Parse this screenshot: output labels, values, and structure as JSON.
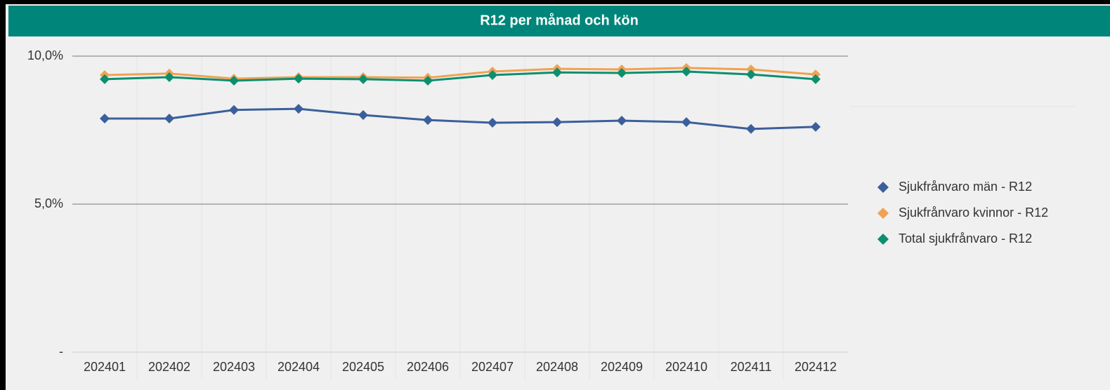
{
  "chart_data": {
    "type": "line",
    "title": "R12 per månad och kön",
    "categories": [
      "202401",
      "202402",
      "202403",
      "202404",
      "202405",
      "202406",
      "202407",
      "202408",
      "202409",
      "202410",
      "202411",
      "202412"
    ],
    "series": [
      {
        "name": "Sjukfrånvaro män - R12",
        "color": "#3b5f9b",
        "values": [
          7.89,
          7.89,
          8.18,
          8.22,
          8.01,
          7.84,
          7.75,
          7.77,
          7.82,
          7.77,
          7.54,
          7.61
        ]
      },
      {
        "name": "Sjukfrånvaro kvinnor - R12",
        "color": "#f0a252",
        "values": [
          9.36,
          9.41,
          9.24,
          9.29,
          9.29,
          9.27,
          9.48,
          9.57,
          9.55,
          9.6,
          9.55,
          9.38
        ]
      },
      {
        "name": "Total sjukfrånvaro - R12",
        "color": "#0b8f6f",
        "values": [
          9.22,
          9.29,
          9.17,
          9.24,
          9.22,
          9.17,
          9.36,
          9.45,
          9.43,
          9.48,
          9.38,
          9.22
        ]
      }
    ],
    "ylim": [
      0,
      10
    ],
    "yticks": [
      {
        "value": 0,
        "label": "-"
      },
      {
        "value": 5,
        "label": "5,0%"
      },
      {
        "value": 10,
        "label": "10,0%"
      }
    ],
    "grid": true,
    "legend": "right"
  }
}
